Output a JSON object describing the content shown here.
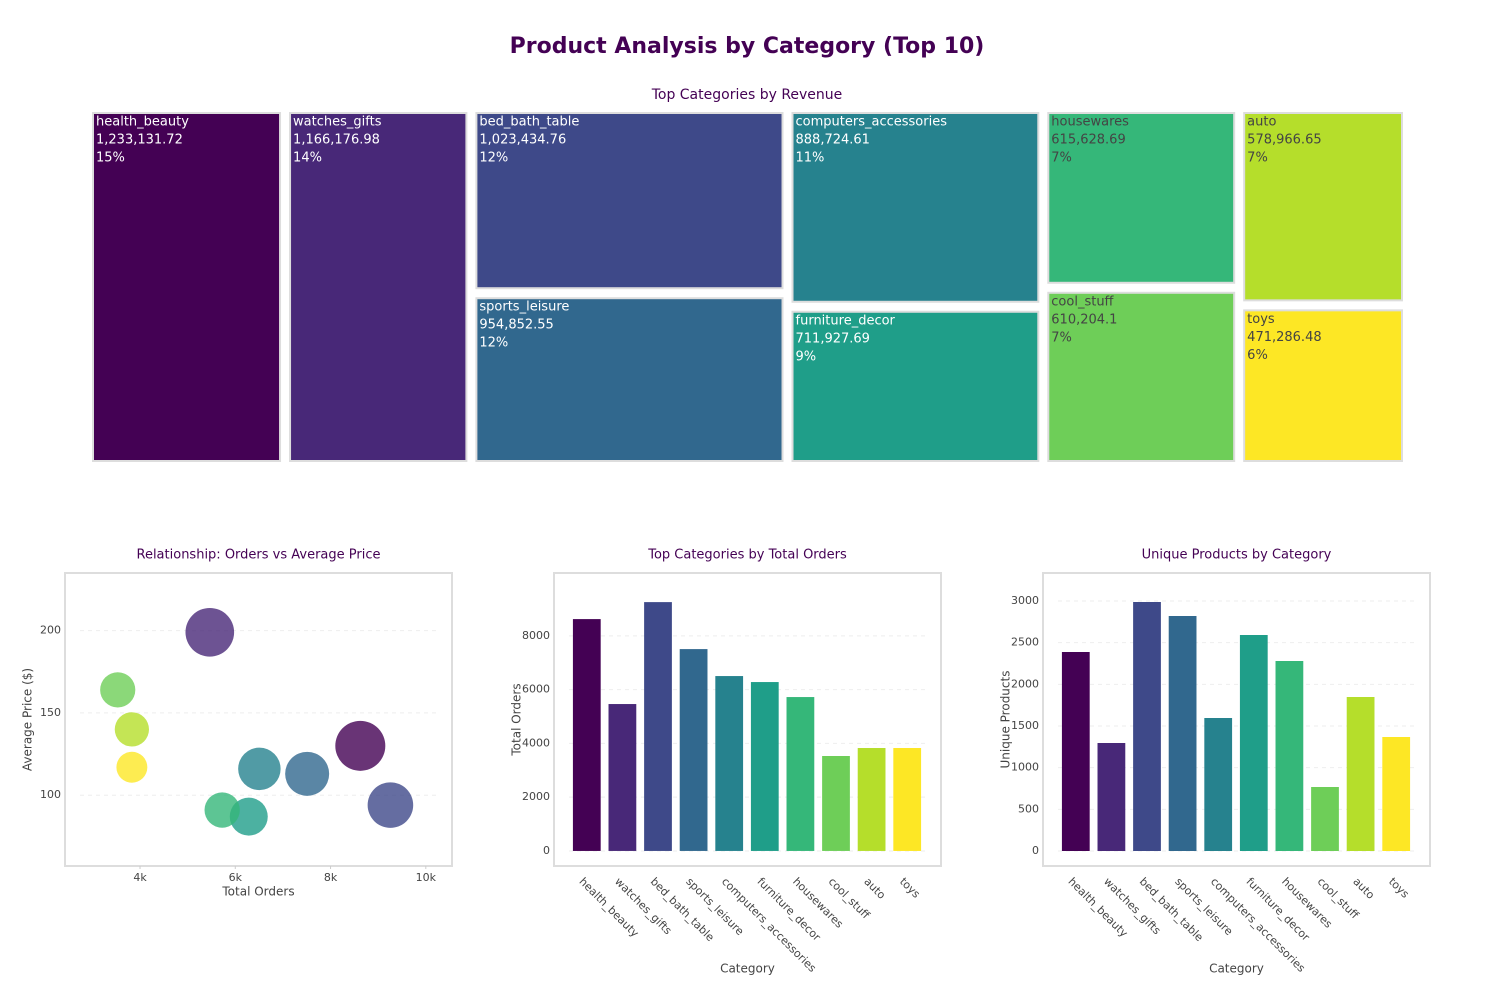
{
  "title": "Product Analysis by Category (Top 10)",
  "chart_data": [
    {
      "type": "treemap",
      "title": "Top Categories by Revenue",
      "categories": [
        "health_beauty",
        "watches_gifts",
        "bed_bath_table",
        "sports_leisure",
        "computers_accessories",
        "furniture_decor",
        "housewares",
        "cool_stuff",
        "auto",
        "toys"
      ],
      "values": [
        1233131.72,
        1166176.98,
        1023434.76,
        954852.55,
        888724.61,
        711927.69,
        615628.69,
        610204.1,
        578966.65,
        471286.48
      ],
      "value_labels": [
        "1,233,131.72",
        "1,166,176.98",
        "1,023,434.76",
        "954,852.55",
        "888,724.61",
        "711,927.69",
        "615,628.69",
        "610,204.1",
        "578,966.65",
        "471,286.48"
      ],
      "percents": [
        15,
        14,
        12,
        12,
        11,
        9,
        7,
        7,
        7,
        6
      ],
      "percent_labels": [
        "15%",
        "14%",
        "12%",
        "12%",
        "11%",
        "9%",
        "7%",
        "7%",
        "7%",
        "6%"
      ],
      "colors": [
        "#440154",
        "#482878",
        "#3e4989",
        "#31688e",
        "#26828e",
        "#1f9e89",
        "#35b779",
        "#6ece58",
        "#b5de2b",
        "#fde725"
      ]
    },
    {
      "type": "scatter",
      "title": "Relationship: Orders vs Average Price",
      "x_label": "Total Orders",
      "y_label": "Average Price ($)",
      "x": [
        8625,
        5465,
        9257,
        7509,
        6506,
        6283,
        5725,
        3532,
        3829,
        3829
      ],
      "values": [
        130,
        199,
        94,
        113,
        116,
        87,
        91,
        164,
        140,
        117
      ],
      "sizes": [
        1233131.72,
        1166176.98,
        1023434.76,
        954852.55,
        888724.61,
        711927.69,
        615628.69,
        610204.1,
        578966.65,
        471286.48
      ],
      "colors": [
        "#440154",
        "#482878",
        "#3e4989",
        "#31688e",
        "#26828e",
        "#1f9e89",
        "#35b779",
        "#6ece58",
        "#b5de2b",
        "#fde725"
      ],
      "xlim": [
        2425,
        10550
      ],
      "ylim": [
        57,
        235
      ],
      "xticks": [
        {
          "value": 4000,
          "label": "4k"
        },
        {
          "value": 6000,
          "label": "6k"
        },
        {
          "value": 8000,
          "label": "8k"
        },
        {
          "value": 10000,
          "label": "10k"
        }
      ],
      "yticks": [
        100,
        150,
        200
      ],
      "grid": true
    },
    {
      "type": "bar",
      "title": "Top Categories by Total Orders",
      "x_label": "Category",
      "y_label": "Total Orders",
      "categories": [
        "health_beauty",
        "watches_gifts",
        "bed_bath_table",
        "sports_leisure",
        "computers_accessories",
        "furniture_decor",
        "housewares",
        "cool_stuff",
        "auto",
        "toys"
      ],
      "values": [
        8625,
        5465,
        9257,
        7509,
        6506,
        6283,
        5725,
        3532,
        3829,
        3829
      ],
      "colors": [
        "#440154",
        "#482878",
        "#3e4989",
        "#31688e",
        "#26828e",
        "#1f9e89",
        "#35b779",
        "#6ece58",
        "#b5de2b",
        "#fde725"
      ],
      "ylim": [
        -560,
        10340
      ],
      "yticks": [
        0,
        2000,
        4000,
        6000,
        8000
      ],
      "grid": true
    },
    {
      "type": "bar",
      "title": "Unique Products by Category",
      "x_label": "Category",
      "y_label": "Unique Products",
      "categories": [
        "health_beauty",
        "watches_gifts",
        "bed_bath_table",
        "sports_leisure",
        "computers_accessories",
        "furniture_decor",
        "housewares",
        "cool_stuff",
        "auto",
        "toys"
      ],
      "values": [
        2388,
        1296,
        2988,
        2820,
        1596,
        2592,
        2280,
        768,
        1848,
        1368
      ],
      "colors": [
        "#440154",
        "#482878",
        "#3e4989",
        "#31688e",
        "#26828e",
        "#1f9e89",
        "#35b779",
        "#6ece58",
        "#b5de2b",
        "#fde725"
      ],
      "ylim": [
        -180,
        3336
      ],
      "yticks": [
        0,
        500,
        1000,
        1500,
        2000,
        2500,
        3000
      ],
      "grid": true
    }
  ]
}
